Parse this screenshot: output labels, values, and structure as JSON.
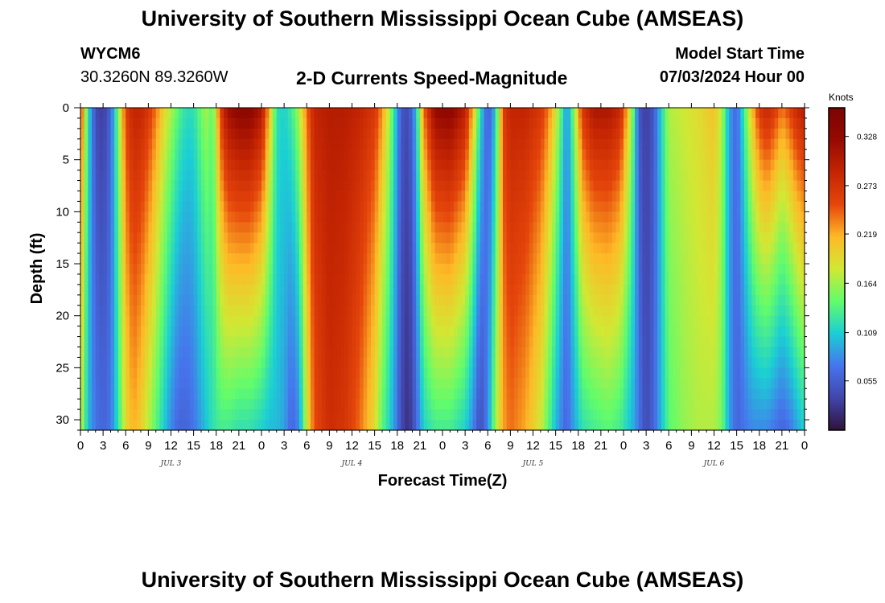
{
  "header": {
    "title": "University of Southern Mississippi Ocean Cube (AMSEAS)",
    "station_id": "WYCM6",
    "station_coords": "30.3260N  89.3260W",
    "subtitle": "2-D Currents Speed-Magnitude",
    "model_start_label": "Model Start Time",
    "model_start_value": "07/03/2024 Hour 00"
  },
  "footer": {
    "title": "University of Southern Mississippi Ocean Cube (AMSEAS)"
  },
  "chart_data": {
    "type": "heatmap",
    "title": "2-D Currents Speed-Magnitude",
    "xlabel": "Forecast Time(Z)",
    "ylabel": "Depth (ft)",
    "xlim": [
      0,
      96
    ],
    "ylim": [
      0,
      31
    ],
    "y_inverted": true,
    "x_tick_labels": [
      "0",
      "3",
      "6",
      "9",
      "12",
      "15",
      "18",
      "21",
      "0",
      "3",
      "6",
      "9",
      "12",
      "15",
      "18",
      "21",
      "0",
      "3",
      "6",
      "9",
      "12",
      "15",
      "18",
      "21",
      "0",
      "3",
      "6",
      "9",
      "12",
      "15",
      "18",
      "21",
      "0"
    ],
    "y_ticks": [
      0,
      5,
      10,
      15,
      20,
      25,
      30
    ],
    "day_labels": [
      {
        "label": "JUL 3",
        "hour": 12
      },
      {
        "label": "JUL 4",
        "hour": 36
      },
      {
        "label": "JUL 5",
        "hour": 60
      },
      {
        "label": "JUL 6",
        "hour": 84
      }
    ],
    "colorbar": {
      "units": "Knots",
      "min": 0.0,
      "max": 0.36,
      "ticks": [
        0.055,
        0.109,
        0.164,
        0.219,
        0.273,
        0.328
      ]
    },
    "columns": [
      {
        "h": 0.0,
        "top": 0.27,
        "bottom": 0.18
      },
      {
        "h": 1.0,
        "top": 0.12,
        "bottom": 0.1
      },
      {
        "h": 2.0,
        "top": 0.04,
        "bottom": 0.07
      },
      {
        "h": 3.0,
        "top": 0.03,
        "bottom": 0.06
      },
      {
        "h": 4.0,
        "top": 0.06,
        "bottom": 0.07
      },
      {
        "h": 5.0,
        "top": 0.15,
        "bottom": 0.12
      },
      {
        "h": 6.0,
        "top": 0.26,
        "bottom": 0.19
      },
      {
        "h": 7.0,
        "top": 0.29,
        "bottom": 0.22
      },
      {
        "h": 8.0,
        "top": 0.29,
        "bottom": 0.2
      },
      {
        "h": 9.0,
        "top": 0.27,
        "bottom": 0.17
      },
      {
        "h": 10.0,
        "top": 0.24,
        "bottom": 0.14
      },
      {
        "h": 11.0,
        "top": 0.2,
        "bottom": 0.11
      },
      {
        "h": 12.0,
        "top": 0.17,
        "bottom": 0.08
      },
      {
        "h": 13.0,
        "top": 0.14,
        "bottom": 0.06
      },
      {
        "h": 14.0,
        "top": 0.12,
        "bottom": 0.06
      },
      {
        "h": 15.0,
        "top": 0.12,
        "bottom": 0.07
      },
      {
        "h": 16.0,
        "top": 0.15,
        "bottom": 0.09
      },
      {
        "h": 17.0,
        "top": 0.17,
        "bottom": 0.11
      },
      {
        "h": 17.5,
        "top": 0.13,
        "bottom": 0.12
      },
      {
        "h": 18.5,
        "top": 0.26,
        "bottom": 0.13
      },
      {
        "h": 19.5,
        "top": 0.32,
        "bottom": 0.13
      },
      {
        "h": 21.0,
        "top": 0.34,
        "bottom": 0.12
      },
      {
        "h": 22.5,
        "top": 0.34,
        "bottom": 0.12
      },
      {
        "h": 24.0,
        "top": 0.31,
        "bottom": 0.11
      },
      {
        "h": 25.0,
        "top": 0.22,
        "bottom": 0.1
      },
      {
        "h": 26.0,
        "top": 0.12,
        "bottom": 0.1
      },
      {
        "h": 27.0,
        "top": 0.11,
        "bottom": 0.09
      },
      {
        "h": 28.0,
        "top": 0.13,
        "bottom": 0.06
      },
      {
        "h": 29.0,
        "top": 0.17,
        "bottom": 0.08
      },
      {
        "h": 30.0,
        "top": 0.24,
        "bottom": 0.18
      },
      {
        "h": 31.0,
        "top": 0.29,
        "bottom": 0.25
      },
      {
        "h": 33.0,
        "top": 0.3,
        "bottom": 0.28
      },
      {
        "h": 35.0,
        "top": 0.3,
        "bottom": 0.27
      },
      {
        "h": 37.0,
        "top": 0.29,
        "bottom": 0.24
      },
      {
        "h": 39.0,
        "top": 0.27,
        "bottom": 0.19
      },
      {
        "h": 40.0,
        "top": 0.23,
        "bottom": 0.14
      },
      {
        "h": 41.0,
        "top": 0.17,
        "bottom": 0.11
      },
      {
        "h": 42.0,
        "top": 0.09,
        "bottom": 0.07
      },
      {
        "h": 42.5,
        "top": 0.05,
        "bottom": 0.04
      },
      {
        "h": 43.5,
        "top": 0.04,
        "bottom": 0.02
      },
      {
        "h": 44.5,
        "top": 0.1,
        "bottom": 0.06
      },
      {
        "h": 45.5,
        "top": 0.24,
        "bottom": 0.11
      },
      {
        "h": 47.0,
        "top": 0.33,
        "bottom": 0.13
      },
      {
        "h": 49.0,
        "top": 0.34,
        "bottom": 0.13
      },
      {
        "h": 51.0,
        "top": 0.3,
        "bottom": 0.11
      },
      {
        "h": 52.0,
        "top": 0.22,
        "bottom": 0.08
      },
      {
        "h": 53.0,
        "top": 0.12,
        "bottom": 0.04
      },
      {
        "h": 54.0,
        "top": 0.05,
        "bottom": 0.08
      },
      {
        "h": 55.0,
        "top": 0.1,
        "bottom": 0.16
      },
      {
        "h": 56.0,
        "top": 0.26,
        "bottom": 0.22
      },
      {
        "h": 57.0,
        "top": 0.29,
        "bottom": 0.24
      },
      {
        "h": 59.0,
        "top": 0.29,
        "bottom": 0.22
      },
      {
        "h": 61.0,
        "top": 0.27,
        "bottom": 0.18
      },
      {
        "h": 62.0,
        "top": 0.24,
        "bottom": 0.14
      },
      {
        "h": 63.0,
        "top": 0.19,
        "bottom": 0.1
      },
      {
        "h": 64.0,
        "top": 0.12,
        "bottom": 0.07
      },
      {
        "h": 64.5,
        "top": 0.08,
        "bottom": 0.06
      },
      {
        "h": 65.0,
        "top": 0.12,
        "bottom": 0.08
      },
      {
        "h": 65.5,
        "top": 0.16,
        "bottom": 0.09
      },
      {
        "h": 66.5,
        "top": 0.27,
        "bottom": 0.12
      },
      {
        "h": 68.0,
        "top": 0.31,
        "bottom": 0.13
      },
      {
        "h": 70.0,
        "top": 0.31,
        "bottom": 0.14
      },
      {
        "h": 71.5,
        "top": 0.29,
        "bottom": 0.13
      },
      {
        "h": 72.5,
        "top": 0.22,
        "bottom": 0.11
      },
      {
        "h": 73.5,
        "top": 0.12,
        "bottom": 0.09
      },
      {
        "h": 74.0,
        "top": 0.05,
        "bottom": 0.07
      },
      {
        "h": 75.0,
        "top": 0.03,
        "bottom": 0.04
      },
      {
        "h": 76.0,
        "top": 0.05,
        "bottom": 0.06
      },
      {
        "h": 77.0,
        "top": 0.11,
        "bottom": 0.1
      },
      {
        "h": 78.0,
        "top": 0.17,
        "bottom": 0.14
      },
      {
        "h": 80.0,
        "top": 0.18,
        "bottom": 0.16
      },
      {
        "h": 82.0,
        "top": 0.19,
        "bottom": 0.17
      },
      {
        "h": 83.0,
        "top": 0.2,
        "bottom": 0.17
      },
      {
        "h": 84.0,
        "top": 0.21,
        "bottom": 0.17
      },
      {
        "h": 85.0,
        "top": 0.17,
        "bottom": 0.15
      },
      {
        "h": 86.0,
        "top": 0.09,
        "bottom": 0.09
      },
      {
        "h": 87.0,
        "top": 0.06,
        "bottom": 0.06
      },
      {
        "h": 88.0,
        "top": 0.13,
        "bottom": 0.07
      },
      {
        "h": 89.0,
        "top": 0.21,
        "bottom": 0.08
      },
      {
        "h": 90.0,
        "top": 0.27,
        "bottom": 0.08
      },
      {
        "h": 91.0,
        "top": 0.29,
        "bottom": 0.08
      },
      {
        "h": 92.0,
        "top": 0.27,
        "bottom": 0.07
      },
      {
        "h": 93.0,
        "top": 0.24,
        "bottom": 0.06
      },
      {
        "h": 94.0,
        "top": 0.26,
        "bottom": 0.07
      },
      {
        "h": 95.0,
        "top": 0.29,
        "bottom": 0.09
      },
      {
        "h": 96.0,
        "top": 0.3,
        "bottom": 0.11
      }
    ]
  }
}
